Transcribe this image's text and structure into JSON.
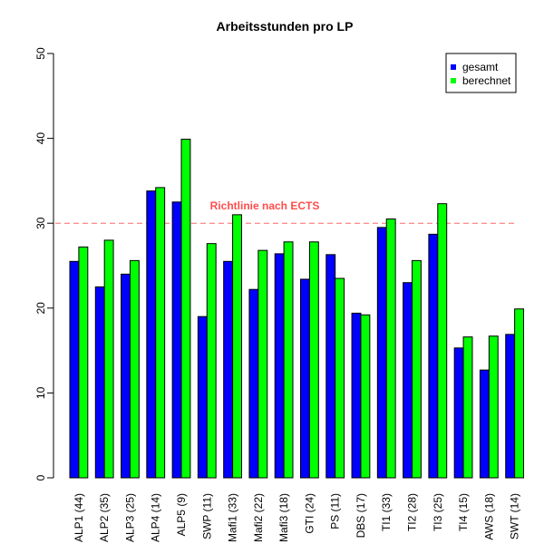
{
  "chart_data": {
    "type": "bar",
    "title": "Arbeitsstunden pro LP",
    "xlabel": "",
    "ylabel": "",
    "ylim": [
      0,
      50
    ],
    "yticks": [
      0,
      10,
      20,
      30,
      40,
      50
    ],
    "grid": false,
    "legend_position": "top-right",
    "categories": [
      "ALP1 (44)",
      "ALP2 (35)",
      "ALP3 (25)",
      "ALP4 (14)",
      "ALP5 (9)",
      "SWP (11)",
      "Mafi1 (33)",
      "Mafi2 (22)",
      "Mafi3 (18)",
      "GTI (24)",
      "PS (11)",
      "DBS (17)",
      "TI1 (33)",
      "TI2 (28)",
      "TI3 (25)",
      "TI4 (15)",
      "AWS (18)",
      "SWT (14)"
    ],
    "series": [
      {
        "name": "gesamt",
        "color": "#0000ff",
        "values": [
          25.5,
          22.5,
          24.0,
          33.8,
          32.5,
          19.0,
          25.5,
          22.2,
          26.4,
          23.4,
          26.3,
          19.4,
          29.5,
          23.0,
          28.7,
          15.3,
          12.7,
          16.9
        ]
      },
      {
        "name": "berechnet",
        "color": "#00ff00",
        "values": [
          27.2,
          28.0,
          25.6,
          34.2,
          39.9,
          27.6,
          31.0,
          26.8,
          27.8,
          27.8,
          23.5,
          19.2,
          30.5,
          25.6,
          32.3,
          16.6,
          16.7,
          19.9
        ]
      }
    ],
    "reference_line": {
      "value": 30,
      "label": "Richtlinie nach ECTS",
      "color": "#ff4d4d"
    }
  }
}
